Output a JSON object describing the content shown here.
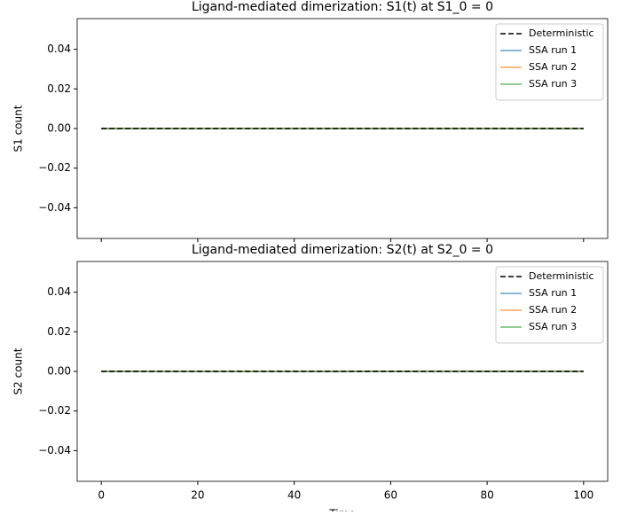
{
  "chart_data": [
    {
      "type": "line",
      "title": "Ligand-mediated dimerization: S1(t) at S1_0 = 0",
      "y_label": "S1 count",
      "x": [
        0,
        100
      ],
      "series": [
        {
          "name": "SSA run 1",
          "color": "#1f77b4",
          "values": [
            0,
            0
          ]
        },
        {
          "name": "SSA run 2",
          "color": "#ff7f0e",
          "values": [
            0,
            0
          ]
        },
        {
          "name": "SSA run 3",
          "color": "#2ca02c",
          "values": [
            0,
            0
          ]
        },
        {
          "name": "Deterministic",
          "color": "#000000",
          "dashed": true,
          "values": [
            0,
            0
          ]
        }
      ],
      "legend_order": [
        3,
        0,
        1,
        2
      ],
      "legend": "upper right",
      "xlim": [
        -5,
        105
      ],
      "xticks": [
        0,
        20,
        40,
        60,
        80,
        100
      ],
      "show_xtick_labels": false,
      "ylim": [
        -0.0555,
        0.0555
      ],
      "yticks": [
        {
          "value": -0.04,
          "label": "−0.04"
        },
        {
          "value": -0.02,
          "label": "−0.02"
        },
        {
          "value": 0,
          "label": "0.00"
        },
        0.02,
        0.04
      ]
    },
    {
      "type": "line",
      "title": "Ligand-mediated dimerization: S2(t) at S2_0 = 0",
      "y_label": "S2 count",
      "x_label": "Time",
      "x": [
        0,
        100
      ],
      "series": [
        {
          "name": "SSA run 1",
          "color": "#1f77b4",
          "values": [
            0,
            0
          ]
        },
        {
          "name": "SSA run 2",
          "color": "#ff7f0e",
          "values": [
            0,
            0
          ]
        },
        {
          "name": "SSA run 3",
          "color": "#2ca02c",
          "values": [
            0,
            0
          ]
        },
        {
          "name": "Deterministic",
          "color": "#000000",
          "dashed": true,
          "values": [
            0,
            0
          ]
        }
      ],
      "legend_order": [
        3,
        0,
        1,
        2
      ],
      "legend": "upper right",
      "xlim": [
        -5,
        105
      ],
      "xticks": [
        0,
        20,
        40,
        60,
        80,
        100
      ],
      "show_xtick_labels": true,
      "ylim": [
        -0.0555,
        0.0555
      ],
      "yticks": [
        {
          "value": -0.04,
          "label": "−0.04"
        },
        {
          "value": -0.02,
          "label": "−0.02"
        },
        {
          "value": 0,
          "label": "0.00"
        },
        0.02,
        0.04
      ]
    }
  ]
}
